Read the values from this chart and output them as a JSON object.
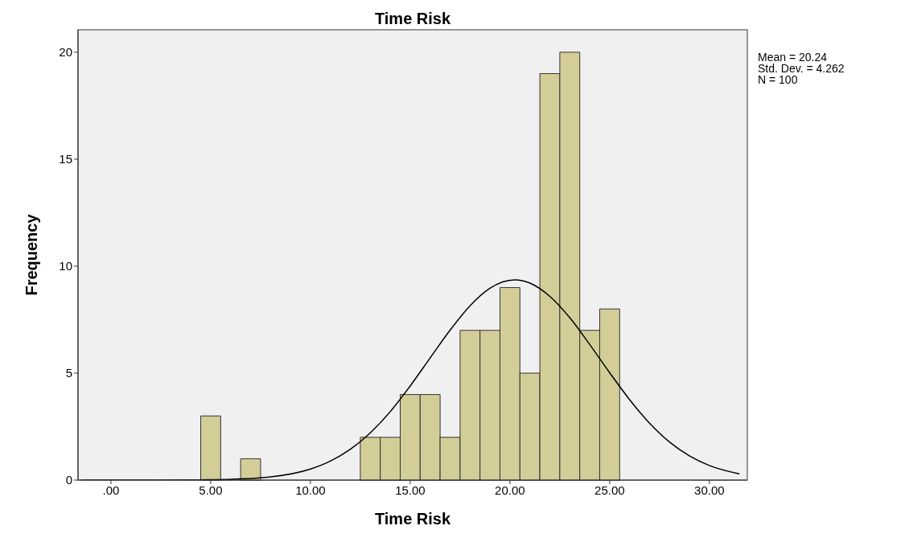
{
  "chart_data": {
    "type": "histogram",
    "title": "Time Risk",
    "xlabel": "Time Risk",
    "ylabel": "Frequency",
    "bins": [
      4.5,
      5.5,
      6.5,
      7.5,
      8.5,
      9.5,
      10.5,
      11.5,
      12.5,
      13.5,
      14.5,
      15.5,
      16.5,
      17.5,
      18.5,
      19.5,
      20.5,
      21.5,
      22.5,
      23.5,
      24.5,
      25.5
    ],
    "values": [
      3,
      0,
      1,
      0,
      0,
      0,
      0,
      0,
      2,
      2,
      4,
      4,
      2,
      7,
      7,
      9,
      5,
      19,
      20,
      7,
      8
    ],
    "color": "#d3ce98",
    "series": [
      {
        "type": "line",
        "color": "#000000",
        "x": [
          -1.5,
          0,
          2,
          4,
          6,
          8,
          10,
          11,
          12,
          13,
          14,
          15,
          16,
          17,
          18,
          19,
          20.24,
          21,
          22,
          23,
          24,
          25,
          26,
          27,
          28,
          29,
          30,
          31.5
        ],
        "values": [
          0,
          0,
          0,
          0.01,
          0.04,
          0.15,
          0.52,
          0.89,
          1.44,
          2.21,
          3.2,
          4.4,
          5.71,
          7.01,
          8.15,
          8.97,
          9.36,
          9.21,
          8.59,
          7.59,
          6.34,
          5.02,
          3.76,
          2.66,
          1.78,
          1.13,
          0.68,
          0.29
        ]
      }
    ],
    "xlim": [
      -1.65,
      31.9
    ],
    "ylim": [
      0,
      21.05
    ],
    "xticks": [
      {
        "value": 0,
        "label": ".00"
      },
      {
        "value": 5,
        "label": "5.00"
      },
      {
        "value": 10,
        "label": "10.00"
      },
      {
        "value": 15,
        "label": "15.00"
      },
      {
        "value": 20,
        "label": "20.00"
      },
      {
        "value": 25,
        "label": "25.00"
      },
      {
        "value": 30,
        "label": "30.00"
      }
    ],
    "yticks": [
      0,
      5,
      10,
      15,
      20
    ],
    "grid": false,
    "marker": "none",
    "line_style": "solid",
    "annotations": [
      "Mean = 20.24",
      "Std. Dev. = 4.262",
      "N = 100"
    ]
  }
}
